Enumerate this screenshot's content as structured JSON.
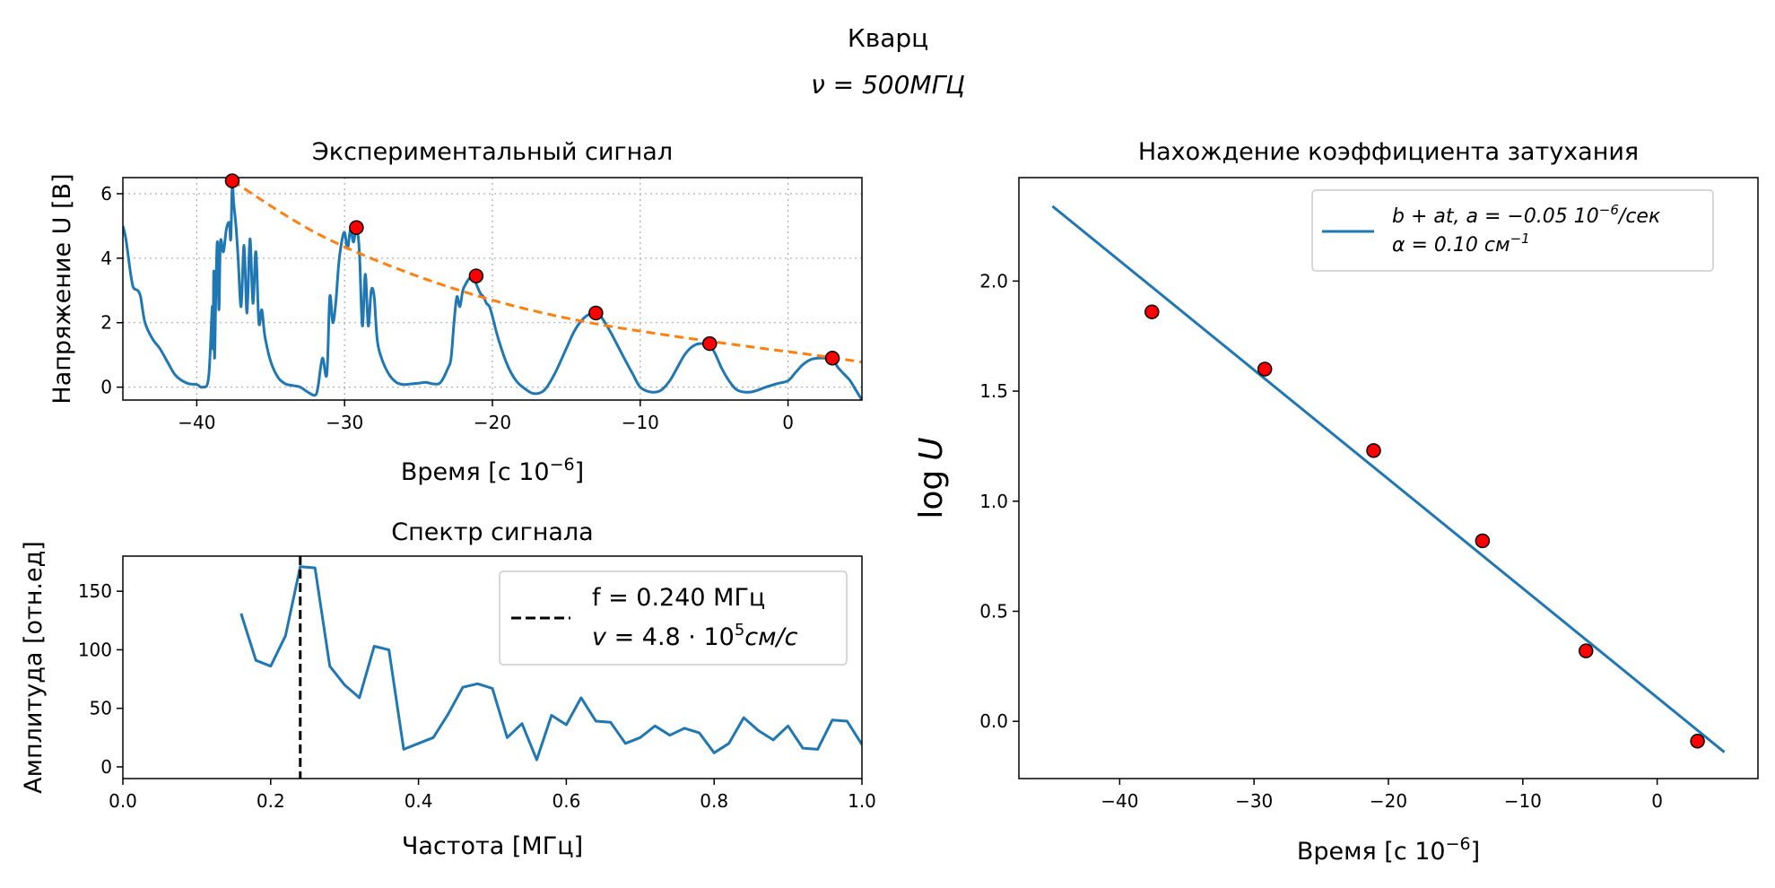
{
  "figure": {
    "title_line1": "Кварц",
    "title_line2_nu": "ν",
    "title_line2_rest": " = 500МГЦ"
  },
  "chart_data": [
    {
      "id": "signal",
      "type": "line",
      "title": "Экспериментальный сигнал",
      "xlabel_main": "Время [с 10",
      "xlabel_exp": "−6",
      "xlabel_end": "]",
      "ylabel": "Напряжение U [В]",
      "xlim": [
        -45,
        5
      ],
      "ylim": [
        -0.4,
        6.5
      ],
      "xticks": [
        -40,
        -30,
        -20,
        -10,
        0
      ],
      "yticks": [
        0,
        2,
        4,
        6
      ],
      "grid": true,
      "series": [
        {
          "kind": "line",
          "color": "#1f77b4",
          "x": [
            -45,
            -44.8,
            -44.5,
            -44.3,
            -44.0,
            -43.8,
            -43.5,
            -43.0,
            -42.5,
            -42.0,
            -41.5,
            -41.0,
            -40.5,
            -40.0,
            -39.6,
            -39.2,
            -38.95,
            -38.9,
            -38.85,
            -38.8,
            -38.7,
            -38.6,
            -38.5,
            -38.4,
            -38.2,
            -38.0,
            -37.8,
            -37.7,
            -37.6,
            -37.5,
            -37.35,
            -37.2,
            -37.0,
            -36.8,
            -36.6,
            -36.4,
            -36.2,
            -36.0,
            -35.8,
            -35.6,
            -35.4,
            -35.0,
            -34.5,
            -34.0,
            -33.5,
            -33.0,
            -32.5,
            -32.0,
            -31.8,
            -31.5,
            -31.2,
            -31.0,
            -30.8,
            -30.6,
            -30.4,
            -30.2,
            -30.0,
            -29.8,
            -29.6,
            -29.4,
            -29.2,
            -29.0,
            -28.8,
            -28.6,
            -28.4,
            -28.2,
            -28.0,
            -27.8,
            -27.5,
            -27.0,
            -26.5,
            -26.0,
            -25.5,
            -25.0,
            -24.5,
            -24.0,
            -23.5,
            -23.0,
            -22.8,
            -22.6,
            -22.4,
            -22.2,
            -22.0,
            -21.8,
            -21.6,
            -21.4,
            -21.2,
            -21.0,
            -20.8,
            -20.6,
            -20.4,
            -20.2,
            -20.0,
            -19.6,
            -19.0,
            -18.4,
            -17.8,
            -17.2,
            -16.5,
            -15.8,
            -15.0,
            -14.5,
            -14.0,
            -13.5,
            -13.0,
            -12.6,
            -12.0,
            -11.2,
            -10.5,
            -10.0,
            -9.3,
            -8.6,
            -8.0,
            -7.5,
            -7.0,
            -6.5,
            -6.0,
            -5.4,
            -5.0,
            -4.5,
            -4.0,
            -3.4,
            -2.5,
            -1.5,
            -0.8,
            0,
            0.5,
            1.0,
            1.5,
            2.0,
            2.5,
            3.0,
            3.4,
            3.8,
            4.2,
            4.6,
            5.0
          ],
          "y": [
            5.0,
            4.6,
            3.6,
            3.1,
            3.0,
            2.8,
            2.0,
            1.5,
            1.2,
            0.8,
            0.4,
            0.2,
            0.1,
            0.08,
            0.0,
            0.3,
            2.5,
            1.2,
            3.6,
            0.9,
            3.2,
            4.5,
            2.4,
            4.5,
            4.2,
            4.9,
            5.1,
            4.6,
            6.3,
            5.7,
            5.0,
            4.0,
            2.5,
            4.4,
            2.3,
            4.6,
            2.6,
            4.2,
            2.0,
            2.4,
            1.6,
            0.8,
            0.3,
            0.1,
            0.05,
            0.0,
            -0.15,
            -0.25,
            0.0,
            0.9,
            0.4,
            2.8,
            2.0,
            2.6,
            3.8,
            4.5,
            4.8,
            4.3,
            4.9,
            4.5,
            4.95,
            4.2,
            1.9,
            3.5,
            1.9,
            3.0,
            2.8,
            1.5,
            0.9,
            0.4,
            0.15,
            0.08,
            0.1,
            0.12,
            0.15,
            0.1,
            0.15,
            0.6,
            0.9,
            2.0,
            2.8,
            2.5,
            3.0,
            3.2,
            3.35,
            3.4,
            3.3,
            3.1,
            2.9,
            2.8,
            2.6,
            2.5,
            2.2,
            1.5,
            0.7,
            0.2,
            -0.05,
            -0.2,
            -0.1,
            0.4,
            1.2,
            1.7,
            2.05,
            2.25,
            2.3,
            2.15,
            1.7,
            1.0,
            0.4,
            0.0,
            -0.15,
            -0.1,
            0.2,
            0.6,
            1.0,
            1.25,
            1.35,
            1.3,
            1.1,
            0.6,
            0.2,
            -0.1,
            -0.15,
            0.0,
            0.1,
            0.2,
            0.45,
            0.7,
            0.85,
            0.9,
            0.9,
            0.85,
            0.6,
            0.4,
            0.2,
            -0.1,
            -0.4
          ]
        }
      ],
      "fit_curve": {
        "color": "#ff7f0e",
        "x": [
          -37.6,
          -32,
          -26,
          -20,
          -14,
          -8,
          -2,
          0,
          2,
          5
        ],
        "y": [
          6.4,
          4.8,
          3.6,
          2.7,
          2.05,
          1.6,
          1.22,
          1.1,
          0.98,
          0.78
        ]
      },
      "peaks": {
        "color": "#ff0000",
        "x": [
          -37.6,
          -29.2,
          -21.1,
          -13.0,
          -5.3,
          3.0
        ],
        "y": [
          6.4,
          4.95,
          3.45,
          2.3,
          1.35,
          0.9
        ]
      }
    },
    {
      "id": "spectrum",
      "type": "line",
      "title": "Спектр сигнала",
      "xlabel": "Частота [МГц]",
      "ylabel": "Амплитуда [отн.ед]",
      "xlim": [
        0,
        1.0
      ],
      "ylim": [
        -10,
        180
      ],
      "xticks": [
        0.0,
        0.2,
        0.4,
        0.6,
        0.8,
        1.0
      ],
      "xtick_labels": [
        "0.0",
        "0.2",
        "0.4",
        "0.6",
        "0.8",
        "1.0"
      ],
      "yticks": [
        0,
        50,
        100,
        150
      ],
      "series": [
        {
          "kind": "line",
          "color": "#1f77b4",
          "x": [
            0.16,
            0.18,
            0.2,
            0.22,
            0.24,
            0.26,
            0.28,
            0.3,
            0.32,
            0.34,
            0.36,
            0.38,
            0.4,
            0.42,
            0.44,
            0.46,
            0.48,
            0.5,
            0.52,
            0.54,
            0.56,
            0.58,
            0.6,
            0.62,
            0.64,
            0.66,
            0.68,
            0.7,
            0.72,
            0.74,
            0.76,
            0.78,
            0.8,
            0.82,
            0.84,
            0.86,
            0.88,
            0.9,
            0.92,
            0.94,
            0.96,
            0.98,
            1.0
          ],
          "y": [
            131,
            91,
            86,
            112,
            171,
            170,
            86,
            70,
            59,
            103,
            100,
            15,
            20,
            25,
            45,
            68,
            71,
            67,
            25,
            37,
            6,
            44,
            36,
            59,
            39,
            38,
            20,
            25,
            35,
            27,
            33,
            29,
            12,
            20,
            42,
            31,
            23,
            35,
            16,
            15,
            40,
            39,
            19
          ]
        }
      ],
      "vline": {
        "x": 0.24,
        "color": "#000000"
      },
      "legend": {
        "position": "upper right",
        "line1": "f = 0.240 МГц",
        "line2_var": "v",
        "line2_eq": " = 4.8 · 10",
        "line2_sup": "5",
        "line2_unit": "см/с"
      }
    },
    {
      "id": "decay",
      "type": "scatter",
      "title": "Нахождение коэффициента затухания",
      "xlabel_main": "Время [с 10",
      "xlabel_exp": "−6",
      "xlabel_end": "]",
      "ylabel_fn": "log",
      "ylabel_var": "U",
      "xlim": [
        -47.5,
        7.5
      ],
      "ylim": [
        -0.26,
        2.47
      ],
      "xticks": [
        -40,
        -30,
        -20,
        -10,
        0
      ],
      "yticks": [
        0.0,
        0.5,
        1.0,
        1.5,
        2.0
      ],
      "ytick_labels": [
        "0.0",
        "0.5",
        "1.0",
        "1.5",
        "2.0"
      ],
      "series": [
        {
          "kind": "points",
          "color": "#ff0000",
          "x": [
            -37.6,
            -29.2,
            -21.1,
            -13.0,
            -5.3,
            3.0
          ],
          "y": [
            1.86,
            1.6,
            1.23,
            0.82,
            0.32,
            -0.09
          ]
        }
      ],
      "fit_line": {
        "color": "#1f77b4",
        "x": [
          -45,
          5
        ],
        "y": [
          2.34,
          -0.14
        ]
      },
      "legend": {
        "position": "upper right",
        "line1_a": "b + at, a = −0.05  10",
        "line1_sup": "−6",
        "line1_b": "/сек",
        "line2_a": "α = 0.10 см",
        "line2_sup": "−1"
      }
    }
  ]
}
